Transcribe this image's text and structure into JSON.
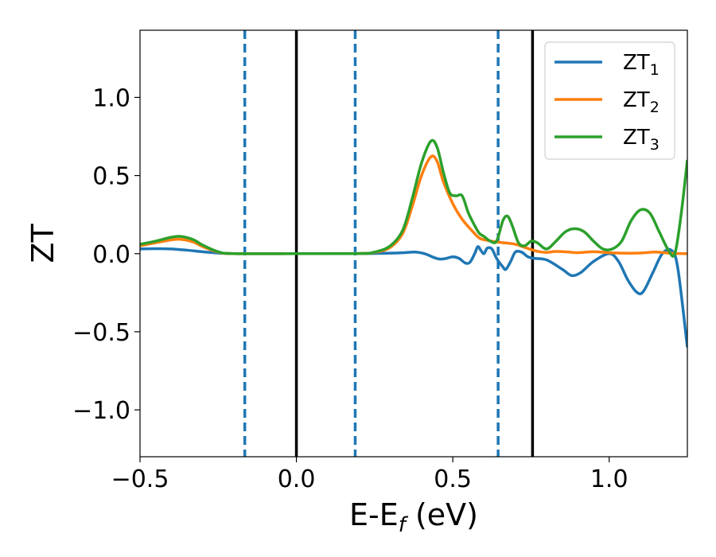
{
  "chart_data": {
    "type": "line",
    "xlabel": "E-E",
    "xlabel_subscript": "f",
    "xlabel_unit": " (eV)",
    "ylabel": "ZT",
    "xlim": [
      -0.5,
      1.25
    ],
    "ylim": [
      -1.3,
      1.43
    ],
    "grid": false,
    "legend_position": "top-right",
    "x_ticks": [
      {
        "value": -0.5,
        "label": "−0.5"
      },
      {
        "value": 0.0,
        "label": "0.0"
      },
      {
        "value": 0.5,
        "label": "0.5"
      },
      {
        "value": 1.0,
        "label": "1.0"
      }
    ],
    "y_ticks": [
      {
        "value": -1.0,
        "label": "−1.0"
      },
      {
        "value": -0.5,
        "label": "−0.5"
      },
      {
        "value": 0.0,
        "label": "0.0"
      },
      {
        "value": 0.5,
        "label": "0.5"
      },
      {
        "value": 1.0,
        "label": "1.0"
      }
    ],
    "vlines": [
      {
        "x": -0.165,
        "style": "dashed",
        "color": "#1f77b4"
      },
      {
        "x": 0.0,
        "style": "solid",
        "color": "#000000"
      },
      {
        "x": 0.188,
        "style": "dashed",
        "color": "#1f77b4"
      },
      {
        "x": 0.645,
        "style": "dashed",
        "color": "#1f77b4"
      },
      {
        "x": 0.755,
        "style": "solid",
        "color": "#000000"
      }
    ],
    "series": [
      {
        "name": "ZT",
        "subscript": "1",
        "color": "#1f77b4",
        "points": [
          [
            -0.5,
            0.03
          ],
          [
            -0.45,
            0.032
          ],
          [
            -0.4,
            0.03
          ],
          [
            -0.35,
            0.022
          ],
          [
            -0.3,
            0.012
          ],
          [
            -0.25,
            0.004
          ],
          [
            -0.2,
            0.0
          ],
          [
            -0.1,
            0.0
          ],
          [
            0.0,
            0.0
          ],
          [
            0.1,
            0.0
          ],
          [
            0.2,
            0.0
          ],
          [
            0.3,
            0.003
          ],
          [
            0.35,
            0.007
          ],
          [
            0.38,
            0.01
          ],
          [
            0.41,
            0.0
          ],
          [
            0.44,
            -0.025
          ],
          [
            0.46,
            -0.035
          ],
          [
            0.48,
            -0.03
          ],
          [
            0.5,
            -0.02
          ],
          [
            0.52,
            -0.03
          ],
          [
            0.54,
            -0.06
          ],
          [
            0.555,
            -0.055
          ],
          [
            0.57,
            0.0
          ],
          [
            0.58,
            0.045
          ],
          [
            0.59,
            0.02
          ],
          [
            0.6,
            0.0
          ],
          [
            0.61,
            0.035
          ],
          [
            0.625,
            0.03
          ],
          [
            0.64,
            -0.03
          ],
          [
            0.66,
            -0.085
          ],
          [
            0.67,
            -0.1
          ],
          [
            0.685,
            -0.05
          ],
          [
            0.7,
            0.01
          ],
          [
            0.72,
            0.01
          ],
          [
            0.74,
            -0.02
          ],
          [
            0.76,
            -0.03
          ],
          [
            0.8,
            -0.04
          ],
          [
            0.85,
            -0.1
          ],
          [
            0.88,
            -0.14
          ],
          [
            0.91,
            -0.12
          ],
          [
            0.95,
            -0.05
          ],
          [
            1.0,
            0.0
          ],
          [
            1.03,
            -0.05
          ],
          [
            1.06,
            -0.17
          ],
          [
            1.09,
            -0.25
          ],
          [
            1.11,
            -0.24
          ],
          [
            1.14,
            -0.12
          ],
          [
            1.17,
            0.0
          ],
          [
            1.2,
            0.02
          ],
          [
            1.22,
            -0.1
          ],
          [
            1.25,
            -0.6
          ]
        ]
      },
      {
        "name": "ZT",
        "subscript": "2",
        "color": "#ff7f0e",
        "points": [
          [
            -0.5,
            0.05
          ],
          [
            -0.45,
            0.07
          ],
          [
            -0.4,
            0.088
          ],
          [
            -0.37,
            0.092
          ],
          [
            -0.33,
            0.075
          ],
          [
            -0.3,
            0.045
          ],
          [
            -0.25,
            0.01
          ],
          [
            -0.2,
            0.0
          ],
          [
            0.0,
            0.0
          ],
          [
            0.2,
            0.001
          ],
          [
            0.25,
            0.008
          ],
          [
            0.3,
            0.04
          ],
          [
            0.34,
            0.13
          ],
          [
            0.37,
            0.3
          ],
          [
            0.4,
            0.5
          ],
          [
            0.43,
            0.62
          ],
          [
            0.45,
            0.59
          ],
          [
            0.47,
            0.46
          ],
          [
            0.5,
            0.32
          ],
          [
            0.53,
            0.22
          ],
          [
            0.56,
            0.15
          ],
          [
            0.585,
            0.1
          ],
          [
            0.61,
            0.085
          ],
          [
            0.64,
            0.075
          ],
          [
            0.67,
            0.068
          ],
          [
            0.7,
            0.06
          ],
          [
            0.73,
            0.04
          ],
          [
            0.77,
            0.015
          ],
          [
            0.8,
            0.008
          ],
          [
            0.83,
            0.014
          ],
          [
            0.87,
            0.01
          ],
          [
            0.9,
            0.006
          ],
          [
            0.95,
            0.012
          ],
          [
            1.0,
            0.006
          ],
          [
            1.05,
            0.003
          ],
          [
            1.1,
            0.004
          ],
          [
            1.15,
            0.01
          ],
          [
            1.2,
            0.002
          ],
          [
            1.25,
            0.0
          ]
        ]
      },
      {
        "name": "ZT",
        "subscript": "3",
        "color": "#2ca02c",
        "points": [
          [
            -0.5,
            0.06
          ],
          [
            -0.45,
            0.08
          ],
          [
            -0.4,
            0.105
          ],
          [
            -0.37,
            0.11
          ],
          [
            -0.33,
            0.09
          ],
          [
            -0.3,
            0.055
          ],
          [
            -0.25,
            0.012
          ],
          [
            -0.2,
            0.0
          ],
          [
            0.0,
            0.0
          ],
          [
            0.2,
            0.001
          ],
          [
            0.25,
            0.01
          ],
          [
            0.3,
            0.05
          ],
          [
            0.34,
            0.15
          ],
          [
            0.37,
            0.35
          ],
          [
            0.4,
            0.58
          ],
          [
            0.43,
            0.72
          ],
          [
            0.45,
            0.68
          ],
          [
            0.47,
            0.52
          ],
          [
            0.49,
            0.39
          ],
          [
            0.51,
            0.37
          ],
          [
            0.53,
            0.37
          ],
          [
            0.55,
            0.26
          ],
          [
            0.57,
            0.18
          ],
          [
            0.585,
            0.13
          ],
          [
            0.6,
            0.11
          ],
          [
            0.62,
            0.08
          ],
          [
            0.64,
            0.08
          ],
          [
            0.66,
            0.21
          ],
          [
            0.675,
            0.24
          ],
          [
            0.69,
            0.18
          ],
          [
            0.71,
            0.07
          ],
          [
            0.73,
            0.05
          ],
          [
            0.75,
            0.08
          ],
          [
            0.77,
            0.07
          ],
          [
            0.8,
            0.03
          ],
          [
            0.83,
            0.08
          ],
          [
            0.86,
            0.14
          ],
          [
            0.89,
            0.16
          ],
          [
            0.92,
            0.14
          ],
          [
            0.95,
            0.08
          ],
          [
            0.98,
            0.03
          ],
          [
            1.01,
            0.03
          ],
          [
            1.04,
            0.08
          ],
          [
            1.07,
            0.21
          ],
          [
            1.1,
            0.28
          ],
          [
            1.13,
            0.26
          ],
          [
            1.16,
            0.14
          ],
          [
            1.19,
            0.02
          ],
          [
            1.21,
            0.0
          ],
          [
            1.23,
            0.25
          ],
          [
            1.25,
            0.6
          ]
        ]
      }
    ]
  }
}
